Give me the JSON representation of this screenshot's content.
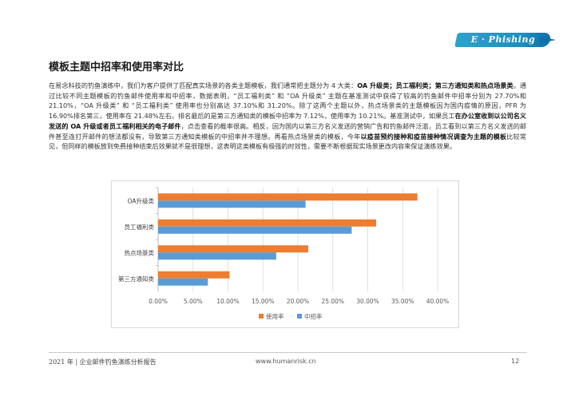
{
  "logo": {
    "text": "E · Phishing"
  },
  "section": {
    "title": "模板主题中招率和使用率对比"
  },
  "paragraph": {
    "p1": "在易念科技的钓鱼演练中，我们为客户提供了匹配真实场景的各类主题模板，我们通常把主题分为 4 大类：",
    "b1": "OA 升级类；员工福利类；第三方通知类和热点场景类",
    "p2": "。通过比较不同主题模板的钓鱼邮件使用率和中招率，数据表明，“员工福利类” 和 “OA 升级类” 主题在基准测试中获得了较高的钓鱼邮件中招率分别为 27.70%和 21.10%，“OA 升级类” 和 “员工福利类” 使用率也分别高达 37.10%和 31.20%。除了这两个主题以外，热点场景类的主题模板因为国内疫情的原因，PFR 为 16.90%排名第三，使用率在 21.48%左右。排名最后的是第三方通知类的模板中招率为 7.12%，使用率为 10.21%。基准测试中，如果员工",
    "b2": "在办公室收到以公司名义发送的 OA 升级或者员工福利相关的电子邮件",
    "p3": "，点击查看的概率很高。相反，因为国内以第三方名义发送的营销广告和钓鱼邮件泛滥，员工看到以第三方名义发送的邮件甚至连打开邮件的想法都没有，导致第三方通知类模板的中招率并不理想。再看热点场景类的模板，今年",
    "b3": "以疫苗预约接种和疫苗接种情况调查为主题的模板",
    "p4": "比较常见，但同样的模板放到免费接种结束后效果就不是很理想，这表明这类模板有极强的时效性，需要不断根据现实场景更改内容来保证演练效果。"
  },
  "chart_data": {
    "type": "bar",
    "orientation": "horizontal",
    "categories": [
      "OA升级类",
      "员工福利类",
      "热点场景类",
      "第三方通知类"
    ],
    "series": [
      {
        "name": "使用率",
        "color": "#ED7D31",
        "values": [
          37.1,
          31.2,
          21.48,
          10.21
        ]
      },
      {
        "name": "中招率",
        "color": "#5B9BD5",
        "values": [
          21.1,
          27.7,
          16.9,
          7.12
        ]
      }
    ],
    "xticks": [
      "0.00%",
      "5.00%",
      "10.00%",
      "15.00%",
      "20.00%",
      "25.00%",
      "30.00%",
      "35.00%",
      "40.00%"
    ],
    "xlim": [
      0,
      40
    ],
    "title": "",
    "xlabel": "",
    "ylabel": "",
    "grid": "vertical",
    "legend": "bottom"
  },
  "footer": {
    "left": "2021 年 | 企业邮件钓鱼演练分析报告",
    "center": "www.humanrisk.cn",
    "page": "12"
  }
}
